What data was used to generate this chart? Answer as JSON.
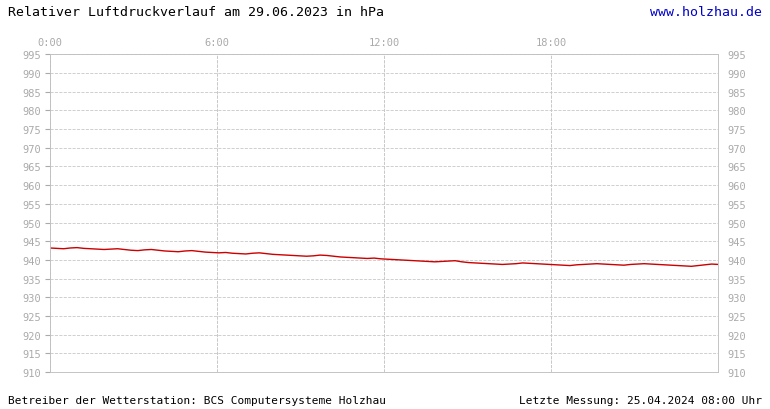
{
  "title": "Relativer Luftdruckverlauf am 29.06.2023 in hPa",
  "website": "www.holzhau.de",
  "footer_left": "Betreiber der Wetterstation: BCS Computersysteme Holzhau",
  "footer_right": "Letzte Messung: 25.04.2024 08:00 Uhr",
  "bg_color": "#ffffff",
  "plot_bg_color": "#ffffff",
  "grid_color": "#c8c8c8",
  "line_color": "#cc0000",
  "title_color": "#000000",
  "website_color": "#0000cc",
  "footer_color": "#000000",
  "tick_color": "#aaaaaa",
  "ylim": [
    910,
    995
  ],
  "ytick_step": 5,
  "xtick_labels": [
    "0:00",
    "6:00",
    "12:00",
    "18:00"
  ],
  "xtick_positions": [
    0.0,
    0.25,
    0.5,
    0.75
  ],
  "pressure_data": [
    943.2,
    943.1,
    943.0,
    943.2,
    943.3,
    943.1,
    943.0,
    942.9,
    942.8,
    942.9,
    943.0,
    942.8,
    942.6,
    942.5,
    942.7,
    942.8,
    942.6,
    942.4,
    942.3,
    942.2,
    942.4,
    942.5,
    942.3,
    942.1,
    942.0,
    941.9,
    942.0,
    941.8,
    941.7,
    941.6,
    941.8,
    941.9,
    941.7,
    941.5,
    941.4,
    941.3,
    941.2,
    941.1,
    941.0,
    941.1,
    941.3,
    941.2,
    941.0,
    940.8,
    940.7,
    940.6,
    940.5,
    940.4,
    940.5,
    940.3,
    940.2,
    940.1,
    940.0,
    939.9,
    939.8,
    939.7,
    939.6,
    939.5,
    939.6,
    939.7,
    939.8,
    939.5,
    939.3,
    939.2,
    939.1,
    939.0,
    938.9,
    938.8,
    938.9,
    939.0,
    939.2,
    939.1,
    939.0,
    938.9,
    938.8,
    938.7,
    938.6,
    938.5,
    938.7,
    938.8,
    938.9,
    939.0,
    938.9,
    938.8,
    938.7,
    938.6,
    938.8,
    938.9,
    939.0,
    938.9,
    938.8,
    938.7,
    938.6,
    938.5,
    938.4,
    938.3,
    938.5,
    938.7,
    938.9,
    938.8
  ]
}
